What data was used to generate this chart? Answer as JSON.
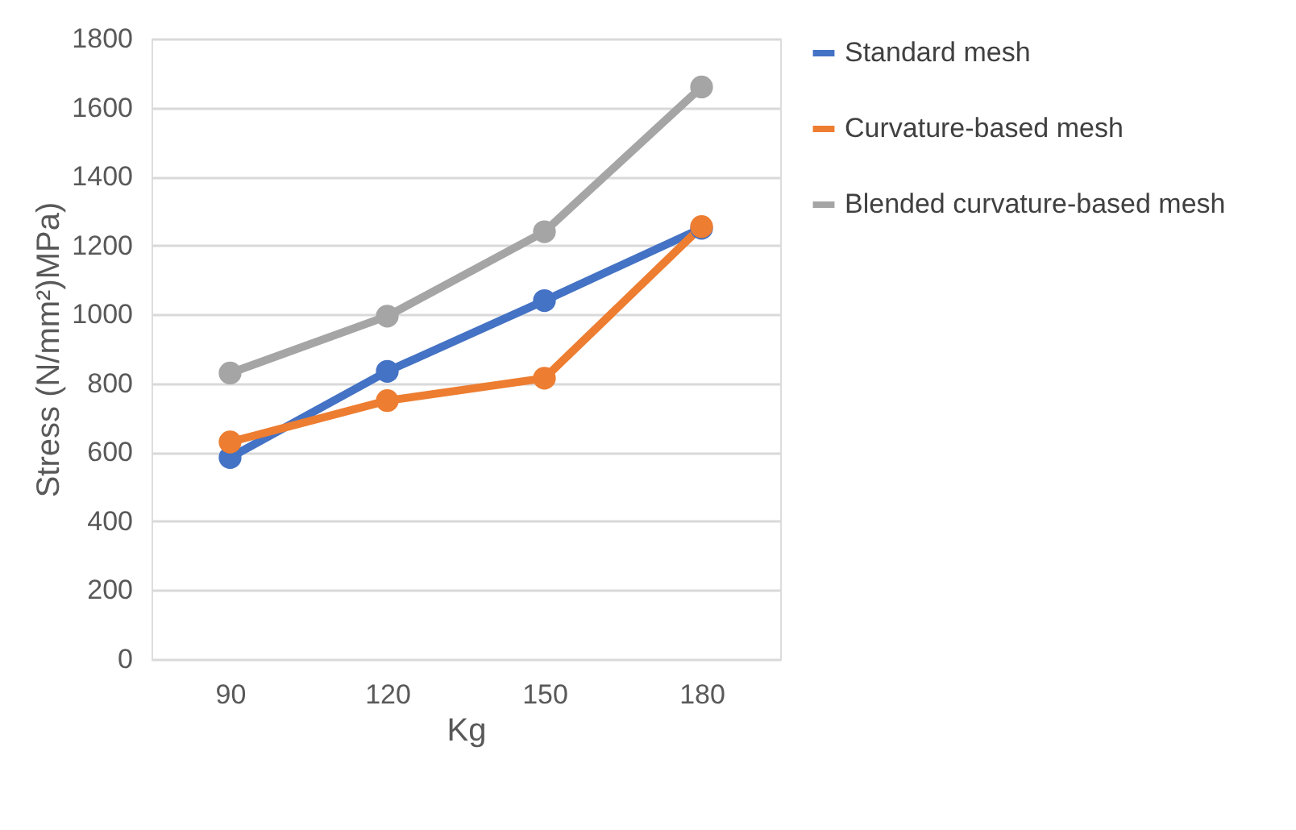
{
  "chart_data": {
    "type": "line",
    "xlabel": "Kg",
    "ylabel": "Stress (N/mm²)MPa)",
    "categories": [
      "90",
      "120",
      "150",
      "180"
    ],
    "series": [
      {
        "name": "Standard mesh",
        "color": "#4472c4",
        "values": [
          585,
          835,
          1040,
          1250
        ]
      },
      {
        "name": "Curvature-based mesh",
        "color": "#ed7d31",
        "values": [
          630,
          750,
          815,
          1255
        ]
      },
      {
        "name": "Blended curvature-based mesh",
        "color": "#a5a5a5",
        "values": [
          830,
          995,
          1240,
          1660
        ]
      }
    ],
    "ylim": [
      0,
      1800
    ],
    "yticks": [
      0,
      200,
      400,
      600,
      800,
      1000,
      1200,
      1400,
      1600,
      1800
    ],
    "grid": "y",
    "legend": "right",
    "marker": "circle",
    "line_style": "solid"
  }
}
